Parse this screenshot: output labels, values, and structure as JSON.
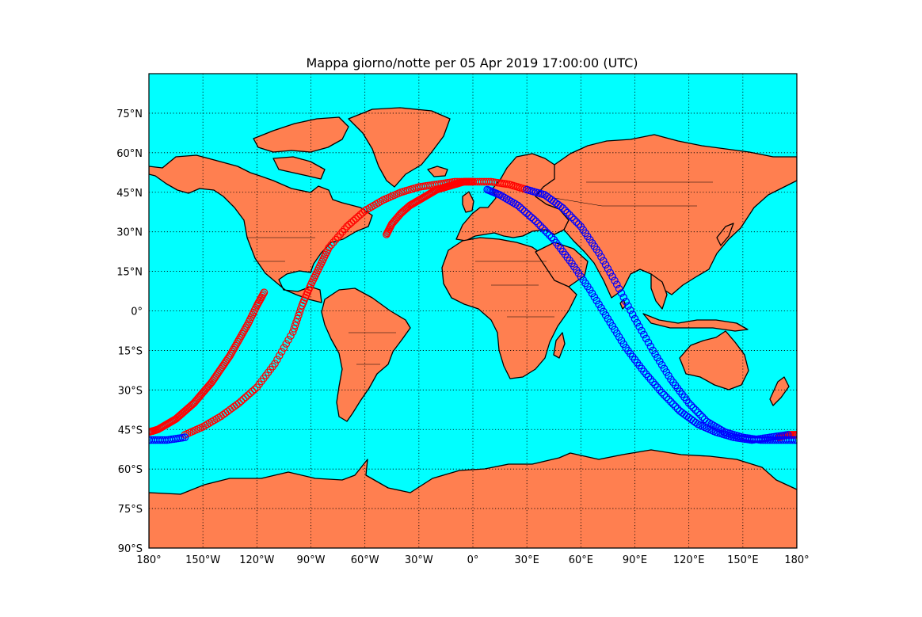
{
  "title": "Mappa giorno/notte per 05 Apr 2019 17:00:00 (UTC)",
  "colors": {
    "ocean": "#00ffff",
    "land": "#ff7f50",
    "series_red": "#ff0000",
    "series_blue": "#0000ff"
  },
  "chart_data": {
    "type": "scatter",
    "projection": "equirectangular",
    "xlim": [
      -180,
      180
    ],
    "ylim": [
      -90,
      90
    ],
    "grid": true,
    "x_ticks": [
      {
        "value": -180,
        "label": "180°"
      },
      {
        "value": -150,
        "label": "150°W"
      },
      {
        "value": -120,
        "label": "120°W"
      },
      {
        "value": -90,
        "label": "90°W"
      },
      {
        "value": -60,
        "label": "60°W"
      },
      {
        "value": -30,
        "label": "30°W"
      },
      {
        "value": 0,
        "label": "0°"
      },
      {
        "value": 30,
        "label": "30°E"
      },
      {
        "value": 60,
        "label": "60°E"
      },
      {
        "value": 90,
        "label": "90°E"
      },
      {
        "value": 120,
        "label": "120°E"
      },
      {
        "value": 150,
        "label": "150°E"
      },
      {
        "value": 180,
        "label": "180°"
      }
    ],
    "y_ticks": [
      {
        "value": 75,
        "label": "75°N"
      },
      {
        "value": 60,
        "label": "60°N"
      },
      {
        "value": 45,
        "label": "45°N"
      },
      {
        "value": 30,
        "label": "30°N"
      },
      {
        "value": 15,
        "label": "15°N"
      },
      {
        "value": 0,
        "label": "0°"
      },
      {
        "value": -15,
        "label": "15°S"
      },
      {
        "value": -30,
        "label": "30°S"
      },
      {
        "value": -45,
        "label": "45°S"
      },
      {
        "value": -60,
        "label": "60°S"
      },
      {
        "value": -75,
        "label": "75°S"
      },
      {
        "value": -90,
        "label": "90°S"
      }
    ],
    "series": [
      {
        "color": "#ff0000",
        "points": [
          [
            -116,
            7
          ],
          [
            -120,
            2
          ],
          [
            -125,
            -5
          ],
          [
            -130,
            -11
          ],
          [
            -135,
            -17
          ],
          [
            -140,
            -22
          ],
          [
            -145,
            -27
          ],
          [
            -150,
            -31
          ],
          [
            -155,
            -35
          ],
          [
            -160,
            -38
          ],
          [
            -165,
            -41
          ],
          [
            -170,
            -43
          ],
          [
            -175,
            -45
          ],
          [
            -180,
            -46
          ]
        ]
      },
      {
        "color": "#ff0000",
        "points": [
          [
            -160,
            -47
          ],
          [
            -150,
            -44
          ],
          [
            -140,
            -40
          ],
          [
            -130,
            -35
          ],
          [
            -120,
            -29
          ],
          [
            -110,
            -20
          ],
          [
            -100,
            -8
          ],
          [
            -95,
            2
          ],
          [
            -90,
            10
          ],
          [
            -85,
            17
          ],
          [
            -80,
            24
          ],
          [
            -70,
            32
          ],
          [
            -60,
            38
          ],
          [
            -50,
            42
          ],
          [
            -40,
            45
          ],
          [
            -30,
            47
          ],
          [
            -20,
            48
          ],
          [
            -10,
            49
          ],
          [
            0,
            49
          ],
          [
            10,
            49
          ],
          [
            20,
            48
          ],
          [
            30,
            46
          ]
        ]
      },
      {
        "color": "#ff0000",
        "points": [
          [
            -48,
            29
          ],
          [
            -45,
            33
          ],
          [
            -40,
            37
          ],
          [
            -35,
            40
          ],
          [
            -30,
            42
          ],
          [
            -25,
            44
          ],
          [
            -20,
            46
          ],
          [
            -15,
            47
          ],
          [
            -10,
            48
          ],
          [
            -5,
            49
          ],
          [
            0,
            49
          ]
        ]
      },
      {
        "color": "#ff0000",
        "points": [
          [
            170,
            -48
          ],
          [
            175,
            -47
          ],
          [
            180,
            -47
          ]
        ]
      },
      {
        "color": "#0000ff",
        "points": [
          [
            -180,
            -49
          ],
          [
            -170,
            -49
          ],
          [
            -160,
            -48
          ]
        ]
      },
      {
        "color": "#0000ff",
        "points": [
          [
            30,
            46
          ],
          [
            40,
            44
          ],
          [
            50,
            39
          ],
          [
            60,
            32
          ],
          [
            70,
            22
          ],
          [
            80,
            10
          ],
          [
            90,
            -3
          ],
          [
            100,
            -15
          ],
          [
            110,
            -26
          ],
          [
            120,
            -35
          ],
          [
            130,
            -42
          ],
          [
            140,
            -46
          ],
          [
            150,
            -48
          ],
          [
            160,
            -49
          ],
          [
            170,
            -49
          ],
          [
            180,
            -49
          ]
        ]
      },
      {
        "color": "#0000ff",
        "points": [
          [
            8,
            46
          ],
          [
            15,
            44
          ],
          [
            25,
            40
          ],
          [
            35,
            34
          ],
          [
            45,
            27
          ],
          [
            55,
            18
          ],
          [
            65,
            8
          ],
          [
            75,
            -3
          ],
          [
            85,
            -14
          ],
          [
            95,
            -23
          ],
          [
            105,
            -31
          ],
          [
            115,
            -38
          ],
          [
            125,
            -43
          ],
          [
            135,
            -46
          ],
          [
            145,
            -48
          ],
          [
            155,
            -49
          ],
          [
            165,
            -48
          ],
          [
            175,
            -47
          ]
        ]
      }
    ]
  }
}
